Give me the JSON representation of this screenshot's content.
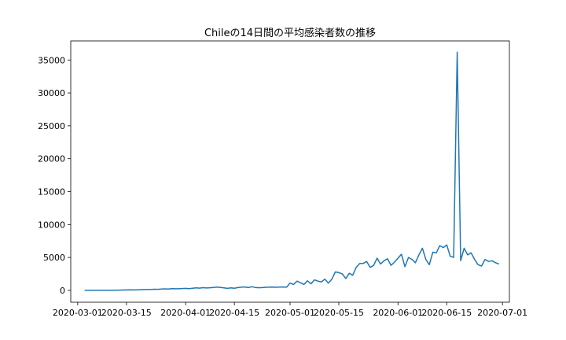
{
  "chart_data": {
    "type": "line",
    "title": "Chileの14日間の平均感染者数の推移",
    "xlabel": "",
    "ylabel": "",
    "x_start": "2020-03-03",
    "xlim": [
      "2020-02-28",
      "2020-07-03"
    ],
    "ylim": [
      -1800,
      37900
    ],
    "grid": false,
    "line_color": "#1f77b4",
    "x_ticks": [
      {
        "date": "2020-03-01",
        "label": "2020-03-01"
      },
      {
        "date": "2020-03-15",
        "label": "2020-03-15"
      },
      {
        "date": "2020-04-01",
        "label": "2020-04-01"
      },
      {
        "date": "2020-04-15",
        "label": "2020-04-15"
      },
      {
        "date": "2020-05-01",
        "label": "2020-05-01"
      },
      {
        "date": "2020-05-15",
        "label": "2020-05-15"
      },
      {
        "date": "2020-06-01",
        "label": "2020-06-01"
      },
      {
        "date": "2020-06-15",
        "label": "2020-06-15"
      },
      {
        "date": "2020-07-01",
        "label": "2020-07-01"
      }
    ],
    "y_ticks": [
      {
        "value": 0,
        "label": "0"
      },
      {
        "value": 5000,
        "label": "5000"
      },
      {
        "value": 10000,
        "label": "10000"
      },
      {
        "value": 15000,
        "label": "15000"
      },
      {
        "value": 20000,
        "label": "20000"
      },
      {
        "value": 25000,
        "label": "25000"
      },
      {
        "value": 30000,
        "label": "30000"
      },
      {
        "value": 35000,
        "label": "35000"
      }
    ],
    "series": [
      {
        "values": [
          0,
          5,
          8,
          10,
          12,
          15,
          18,
          22,
          28,
          32,
          40,
          50,
          60,
          80,
          70,
          90,
          110,
          130,
          120,
          150,
          170,
          160,
          200,
          230,
          210,
          260,
          250,
          240,
          280,
          300,
          260,
          320,
          380,
          340,
          410,
          370,
          400,
          450,
          500,
          450,
          380,
          300,
          380,
          330,
          420,
          480,
          520,
          430,
          560,
          440,
          400,
          430,
          470,
          480,
          510,
          470,
          490,
          520,
          480,
          1100,
          900,
          1400,
          1150,
          900,
          1450,
          1000,
          1600,
          1400,
          1300,
          1700,
          1100,
          1700,
          2800,
          2700,
          2500,
          1800,
          2600,
          2300,
          3500,
          4100,
          4100,
          4400,
          3500,
          3800,
          4900,
          4000,
          4500,
          4800,
          3800,
          4300,
          4900,
          5500,
          3600,
          5000,
          4700,
          4200,
          5400,
          6400,
          4700,
          3900,
          5800,
          5700,
          6800,
          6500,
          6900,
          5200,
          5000,
          36200,
          4500,
          6400,
          5400,
          5700,
          4700,
          3900,
          3700,
          4700,
          4400,
          4500,
          4200,
          4000
        ]
      }
    ]
  }
}
